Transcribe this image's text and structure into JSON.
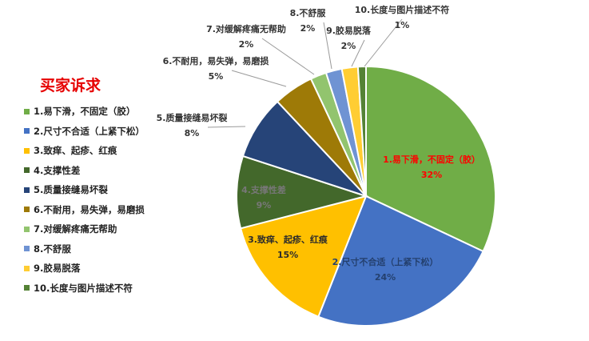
{
  "chart_data": {
    "type": "pie",
    "title": "买家诉求",
    "legend_position": "left",
    "slices": [
      {
        "label": "1.易下滑，不固定（胶）",
        "value": 32,
        "pct_label": "32%",
        "color": "#70ad47"
      },
      {
        "label": "2.尺寸不合适（上紧下松）",
        "value": 24,
        "pct_label": "24%",
        "color": "#4472c4"
      },
      {
        "label": "3.致痒、起疹、红痕",
        "value": 15,
        "pct_label": "15%",
        "color": "#ffc000"
      },
      {
        "label": "4.支撑性差",
        "value": 9,
        "pct_label": "9%",
        "color": "#43682b"
      },
      {
        "label": "5.质量接缝易坏裂",
        "value": 8,
        "pct_label": "8%",
        "color": "#264478"
      },
      {
        "label": "6.不耐用，易失弹，易磨损",
        "value": 5,
        "pct_label": "5%",
        "color": "#9e7a07"
      },
      {
        "label": "7.对缓解疼痛无帮助",
        "value": 2,
        "pct_label": "2%",
        "color": "#92c46e"
      },
      {
        "label": "8.不舒服",
        "value": 2,
        "pct_label": "2%",
        "color": "#6f93d3"
      },
      {
        "label": "9.胶易脱落",
        "value": 2,
        "pct_label": "2%",
        "color": "#ffcd33"
      },
      {
        "label": "10.长度与图片描述不符",
        "value": 1,
        "pct_label": "1%",
        "color": "#548235"
      }
    ]
  }
}
